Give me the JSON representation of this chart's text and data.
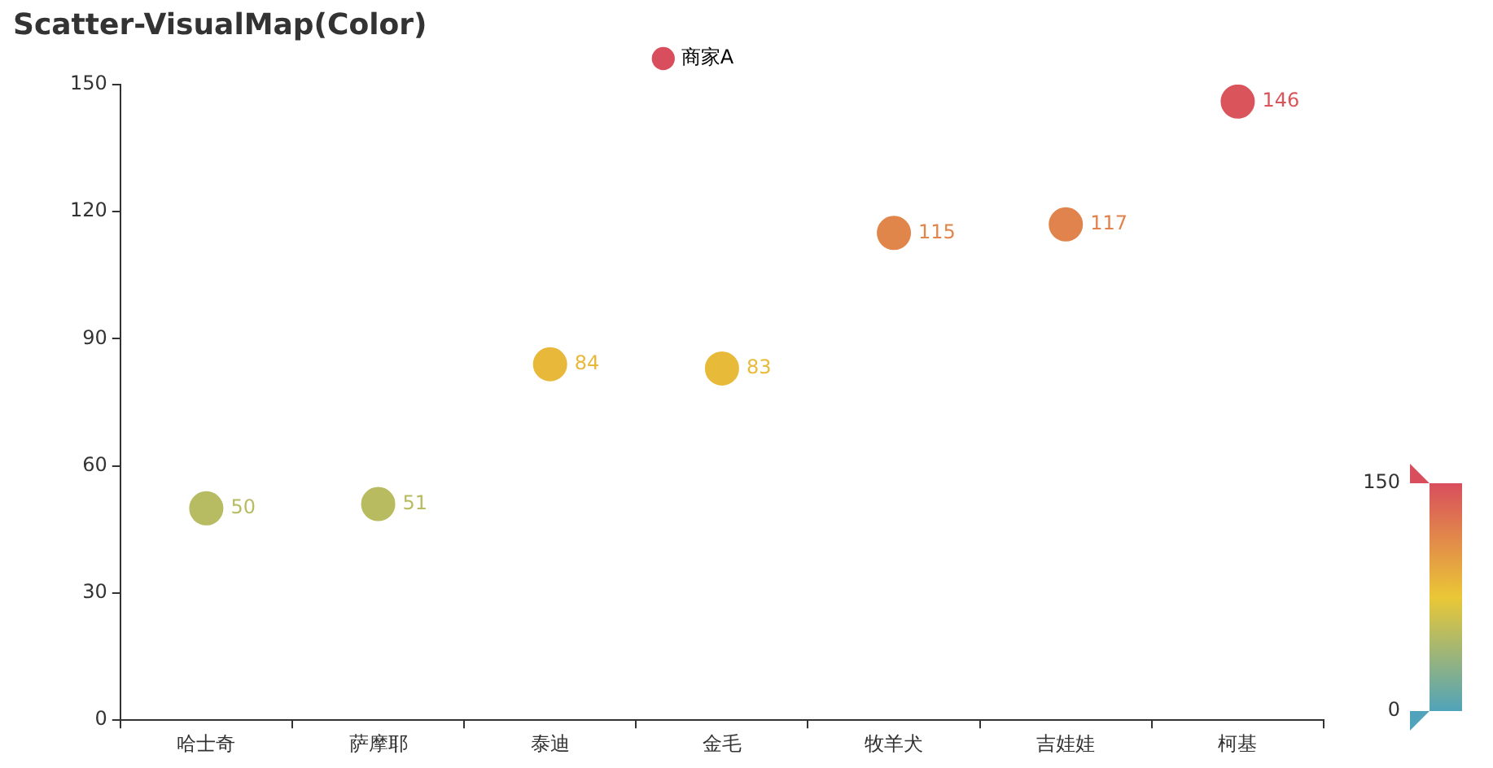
{
  "chart_data": {
    "type": "scatter",
    "title": "Scatter-VisualMap(Color)",
    "categories": [
      "哈士奇",
      "萨摩耶",
      "泰迪",
      "金毛",
      "牧羊犬",
      "吉娃娃",
      "柯基"
    ],
    "series": [
      {
        "name": "商家A",
        "values": [
          50,
          51,
          84,
          83,
          115,
          117,
          146
        ],
        "cvalues": [
          50,
          51,
          84,
          83,
          115,
          117,
          146
        ]
      }
    ],
    "ylim": [
      0,
      150
    ],
    "yticks": [
      0,
      30,
      60,
      90,
      120,
      150
    ],
    "clim": [
      0,
      150
    ],
    "cticks": [
      0,
      150
    ],
    "data_labels": true,
    "legend": "top",
    "grid": false,
    "marker": "circle"
  }
}
